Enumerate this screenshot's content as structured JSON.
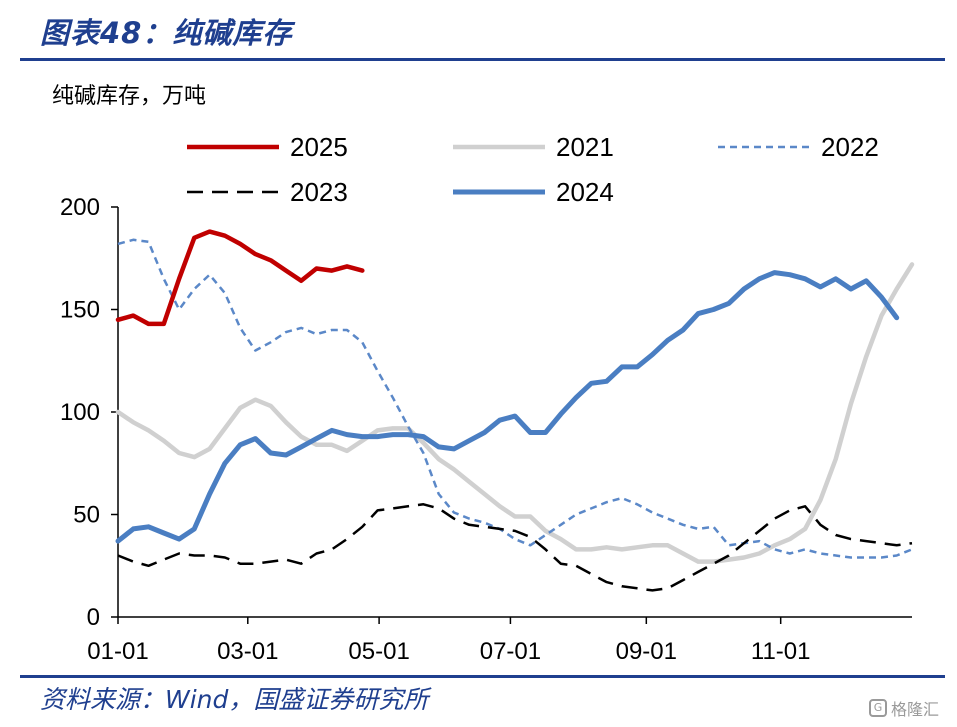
{
  "header": {
    "title": "图表48：纯碱库存"
  },
  "footer": {
    "source": "资料来源：Wind，国盛证券研究所",
    "watermark_label": "格隆汇",
    "watermark_icon": "g-logo-icon"
  },
  "chart_data": {
    "type": "line",
    "unit_label": "纯碱库存，万吨",
    "ylim": [
      0,
      200
    ],
    "yticks": [
      "0",
      "50",
      "100",
      "150",
      "200"
    ],
    "xlim": [
      1,
      53
    ],
    "xticks": [
      {
        "label": "01-01",
        "week": 1
      },
      {
        "label": "03-01",
        "week": 9.5
      },
      {
        "label": "05-01",
        "week": 18.1
      },
      {
        "label": "07-01",
        "week": 26.7
      },
      {
        "label": "09-01",
        "week": 35.6
      },
      {
        "label": "11-01",
        "week": 44.4
      }
    ],
    "legend_position": "top",
    "grid": false,
    "series": [
      {
        "name": "2025",
        "color": "#c00000",
        "width": 4.5,
        "dash": "",
        "points": [
          [
            1,
            145
          ],
          [
            2,
            147
          ],
          [
            3,
            143
          ],
          [
            4,
            143
          ],
          [
            5,
            165
          ],
          [
            6,
            185
          ],
          [
            7,
            188
          ],
          [
            8,
            186
          ],
          [
            9,
            182
          ],
          [
            10,
            177
          ],
          [
            11,
            174
          ],
          [
            12,
            169
          ],
          [
            13,
            164
          ],
          [
            14,
            170
          ],
          [
            15,
            169
          ],
          [
            16,
            171
          ],
          [
            17,
            169
          ]
        ]
      },
      {
        "name": "2021",
        "color": "#d0d0d0",
        "width": 4.5,
        "dash": "",
        "points": [
          [
            1,
            100
          ],
          [
            2,
            95
          ],
          [
            3,
            91
          ],
          [
            4,
            86
          ],
          [
            5,
            80
          ],
          [
            6,
            78
          ],
          [
            7,
            82
          ],
          [
            8,
            92
          ],
          [
            9,
            102
          ],
          [
            10,
            106
          ],
          [
            11,
            103
          ],
          [
            12,
            95
          ],
          [
            13,
            88
          ],
          [
            14,
            84
          ],
          [
            15,
            84
          ],
          [
            16,
            81
          ],
          [
            17,
            86
          ],
          [
            18,
            91
          ],
          [
            19,
            92
          ],
          [
            20,
            92
          ],
          [
            21,
            85
          ],
          [
            22,
            77
          ],
          [
            23,
            72
          ],
          [
            24,
            66
          ],
          [
            25,
            60
          ],
          [
            26,
            54
          ],
          [
            27,
            49
          ],
          [
            28,
            49
          ],
          [
            29,
            42
          ],
          [
            30,
            38
          ],
          [
            31,
            33
          ],
          [
            32,
            33
          ],
          [
            33,
            34
          ],
          [
            34,
            33
          ],
          [
            35,
            34
          ],
          [
            36,
            35
          ],
          [
            37,
            35
          ],
          [
            38,
            31
          ],
          [
            39,
            27
          ],
          [
            40,
            27
          ],
          [
            41,
            28
          ],
          [
            42,
            29
          ],
          [
            43,
            31
          ],
          [
            44,
            35
          ],
          [
            45,
            38
          ],
          [
            46,
            43
          ],
          [
            47,
            57
          ],
          [
            48,
            77
          ],
          [
            49,
            104
          ],
          [
            50,
            127
          ],
          [
            51,
            147
          ],
          [
            52,
            160
          ],
          [
            53,
            172
          ]
        ]
      },
      {
        "name": "2022",
        "color": "#5b88c8",
        "width": 2.5,
        "dash": "7,5",
        "points": [
          [
            1,
            182
          ],
          [
            2,
            184
          ],
          [
            3,
            183
          ],
          [
            4,
            165
          ],
          [
            5,
            150
          ],
          [
            6,
            160
          ],
          [
            7,
            167
          ],
          [
            8,
            158
          ],
          [
            9,
            141
          ],
          [
            10,
            130
          ],
          [
            11,
            134
          ],
          [
            12,
            139
          ],
          [
            13,
            141
          ],
          [
            14,
            138
          ],
          [
            15,
            140
          ],
          [
            16,
            140
          ],
          [
            17,
            134
          ],
          [
            18,
            120
          ],
          [
            19,
            107
          ],
          [
            20,
            93
          ],
          [
            21,
            80
          ],
          [
            22,
            60
          ],
          [
            23,
            51
          ],
          [
            24,
            48
          ],
          [
            25,
            46
          ],
          [
            26,
            43
          ],
          [
            27,
            38
          ],
          [
            28,
            35
          ],
          [
            29,
            40
          ],
          [
            30,
            45
          ],
          [
            31,
            50
          ],
          [
            32,
            53
          ],
          [
            33,
            56
          ],
          [
            34,
            58
          ],
          [
            35,
            55
          ],
          [
            36,
            51
          ],
          [
            37,
            48
          ],
          [
            38,
            45
          ],
          [
            39,
            43
          ],
          [
            40,
            44
          ],
          [
            41,
            35
          ],
          [
            42,
            36
          ],
          [
            43,
            37
          ],
          [
            44,
            33
          ],
          [
            45,
            31
          ],
          [
            46,
            33
          ],
          [
            47,
            31
          ],
          [
            48,
            30
          ],
          [
            49,
            29
          ],
          [
            50,
            29
          ],
          [
            51,
            29
          ],
          [
            52,
            30
          ],
          [
            53,
            33
          ]
        ]
      },
      {
        "name": "2023",
        "color": "#000000",
        "width": 2.5,
        "dash": "16,9",
        "points": [
          [
            1,
            30
          ],
          [
            2,
            27
          ],
          [
            3,
            25
          ],
          [
            4,
            28
          ],
          [
            5,
            31
          ],
          [
            6,
            30
          ],
          [
            7,
            30
          ],
          [
            8,
            29
          ],
          [
            9,
            26
          ],
          [
            10,
            26
          ],
          [
            11,
            27
          ],
          [
            12,
            28
          ],
          [
            13,
            26
          ],
          [
            14,
            31
          ],
          [
            15,
            33
          ],
          [
            16,
            38
          ],
          [
            17,
            44
          ],
          [
            18,
            52
          ],
          [
            19,
            53
          ],
          [
            20,
            54
          ],
          [
            21,
            55
          ],
          [
            22,
            53
          ],
          [
            23,
            48
          ],
          [
            24,
            45
          ],
          [
            25,
            44
          ],
          [
            26,
            43
          ],
          [
            27,
            42
          ],
          [
            28,
            39
          ],
          [
            29,
            33
          ],
          [
            30,
            26
          ],
          [
            31,
            25
          ],
          [
            32,
            21
          ],
          [
            33,
            17
          ],
          [
            34,
            15
          ],
          [
            35,
            14
          ],
          [
            36,
            13
          ],
          [
            37,
            14
          ],
          [
            38,
            18
          ],
          [
            39,
            22
          ],
          [
            40,
            26
          ],
          [
            41,
            30
          ],
          [
            42,
            36
          ],
          [
            43,
            42
          ],
          [
            44,
            48
          ],
          [
            45,
            52
          ],
          [
            46,
            54
          ],
          [
            47,
            45
          ],
          [
            48,
            40
          ],
          [
            49,
            38
          ],
          [
            50,
            37
          ],
          [
            51,
            36
          ],
          [
            52,
            35
          ],
          [
            53,
            36
          ]
        ]
      },
      {
        "name": "2024",
        "color": "#4a7ec2",
        "width": 5,
        "dash": "",
        "points": [
          [
            1,
            37
          ],
          [
            2,
            43
          ],
          [
            3,
            44
          ],
          [
            4,
            41
          ],
          [
            5,
            38
          ],
          [
            6,
            43
          ],
          [
            7,
            60
          ],
          [
            8,
            75
          ],
          [
            9,
            84
          ],
          [
            10,
            87
          ],
          [
            11,
            80
          ],
          [
            12,
            79
          ],
          [
            13,
            83
          ],
          [
            14,
            87
          ],
          [
            15,
            91
          ],
          [
            16,
            89
          ],
          [
            17,
            88
          ],
          [
            18,
            88
          ],
          [
            19,
            89
          ],
          [
            20,
            89
          ],
          [
            21,
            88
          ],
          [
            22,
            83
          ],
          [
            23,
            82
          ],
          [
            24,
            86
          ],
          [
            25,
            90
          ],
          [
            26,
            96
          ],
          [
            27,
            98
          ],
          [
            28,
            90
          ],
          [
            29,
            90
          ],
          [
            30,
            99
          ],
          [
            31,
            107
          ],
          [
            32,
            114
          ],
          [
            33,
            115
          ],
          [
            34,
            122
          ],
          [
            35,
            122
          ],
          [
            36,
            128
          ],
          [
            37,
            135
          ],
          [
            38,
            140
          ],
          [
            39,
            148
          ],
          [
            40,
            150
          ],
          [
            41,
            153
          ],
          [
            42,
            160
          ],
          [
            43,
            165
          ],
          [
            44,
            168
          ],
          [
            45,
            167
          ],
          [
            46,
            165
          ],
          [
            47,
            161
          ],
          [
            48,
            165
          ],
          [
            49,
            160
          ],
          [
            50,
            164
          ],
          [
            51,
            156
          ],
          [
            52,
            146
          ]
        ]
      }
    ]
  }
}
